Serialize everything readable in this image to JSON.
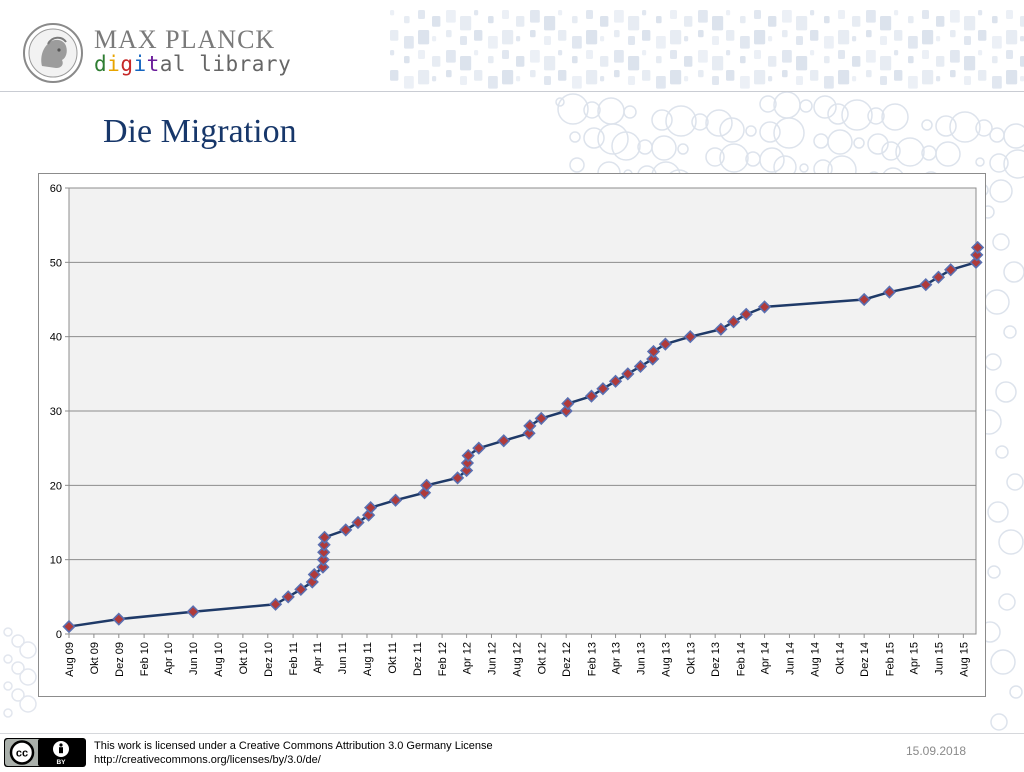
{
  "header": {
    "logo_name": "MAX PLANCK",
    "logo_sub_parts": [
      "d",
      "i",
      "g",
      "i",
      "t",
      "al library"
    ],
    "emblem_icon": "minerva-emblem-icon"
  },
  "slide": {
    "title": "Die Migration"
  },
  "footer": {
    "license_line1": "This work is licensed under a Creative Commons Attribution 3.0 Germany License",
    "license_line2": "http://creativecommons.org/licenses/by/3.0/de/",
    "date": "15.09.2018",
    "cc_icon": "creative-commons-by-icon",
    "cc_label": "cc",
    "by_label": "BY"
  },
  "colors": {
    "title": "#17376a",
    "line": "#1f3a68",
    "marker_fill": "#b03a3a",
    "marker_stroke": "#5a6fb0",
    "plot_bg": "#f2f2f2",
    "grid": "#8c8c8c"
  },
  "chart_data": {
    "type": "line",
    "title": "",
    "xlabel": "",
    "ylabel": "",
    "ylim": [
      0,
      60
    ],
    "yticks": [
      0,
      10,
      20,
      30,
      40,
      50,
      60
    ],
    "grid": true,
    "legend": "none",
    "x_start": "2009-08",
    "x_end": "2015-09",
    "x_ticks": [
      {
        "date": "2009-08",
        "label": "Aug 09"
      },
      {
        "date": "2009-10",
        "label": "Okt 09"
      },
      {
        "date": "2009-12",
        "label": "Dez 09"
      },
      {
        "date": "2010-02",
        "label": "Feb 10"
      },
      {
        "date": "2010-04",
        "label": "Apr 10"
      },
      {
        "date": "2010-06",
        "label": "Jun 10"
      },
      {
        "date": "2010-08",
        "label": "Aug 10"
      },
      {
        "date": "2010-10",
        "label": "Okt 10"
      },
      {
        "date": "2010-12",
        "label": "Dez 10"
      },
      {
        "date": "2011-02",
        "label": "Feb 11"
      },
      {
        "date": "2011-04",
        "label": "Apr 11"
      },
      {
        "date": "2011-06",
        "label": "Jun 11"
      },
      {
        "date": "2011-08",
        "label": "Aug 11"
      },
      {
        "date": "2011-10",
        "label": "Okt 11"
      },
      {
        "date": "2011-12",
        "label": "Dez 11"
      },
      {
        "date": "2012-02",
        "label": "Feb 12"
      },
      {
        "date": "2012-04",
        "label": "Apr 12"
      },
      {
        "date": "2012-06",
        "label": "Jun 12"
      },
      {
        "date": "2012-08",
        "label": "Aug 12"
      },
      {
        "date": "2012-10",
        "label": "Okt 12"
      },
      {
        "date": "2012-12",
        "label": "Dez 12"
      },
      {
        "date": "2013-02",
        "label": "Feb 13"
      },
      {
        "date": "2013-04",
        "label": "Apr 13"
      },
      {
        "date": "2013-06",
        "label": "Jun 13"
      },
      {
        "date": "2013-08",
        "label": "Aug 13"
      },
      {
        "date": "2013-10",
        "label": "Okt 13"
      },
      {
        "date": "2013-12",
        "label": "Dez 13"
      },
      {
        "date": "2014-02",
        "label": "Feb 14"
      },
      {
        "date": "2014-04",
        "label": "Apr 14"
      },
      {
        "date": "2014-06",
        "label": "Jun 14"
      },
      {
        "date": "2014-08",
        "label": "Aug 14"
      },
      {
        "date": "2014-10",
        "label": "Okt 14"
      },
      {
        "date": "2014-12",
        "label": "Dez 14"
      },
      {
        "date": "2015-02",
        "label": "Feb 15"
      },
      {
        "date": "2015-04",
        "label": "Apr 15"
      },
      {
        "date": "2015-06",
        "label": "Jun 15"
      },
      {
        "date": "2015-08",
        "label": "Aug 15"
      }
    ],
    "points": [
      {
        "x": "2009-08-01",
        "y": 1
      },
      {
        "x": "2009-12-01",
        "y": 2
      },
      {
        "x": "2010-06-01",
        "y": 3
      },
      {
        "x": "2010-12-20",
        "y": 4
      },
      {
        "x": "2011-01-20",
        "y": 5
      },
      {
        "x": "2011-02-20",
        "y": 6
      },
      {
        "x": "2011-03-20",
        "y": 7
      },
      {
        "x": "2011-03-25",
        "y": 8
      },
      {
        "x": "2011-04-15",
        "y": 9
      },
      {
        "x": "2011-04-16",
        "y": 10
      },
      {
        "x": "2011-04-17",
        "y": 11
      },
      {
        "x": "2011-04-18",
        "y": 12
      },
      {
        "x": "2011-04-19",
        "y": 13
      },
      {
        "x": "2011-06-10",
        "y": 14
      },
      {
        "x": "2011-07-10",
        "y": 15
      },
      {
        "x": "2011-08-05",
        "y": 16
      },
      {
        "x": "2011-08-10",
        "y": 17
      },
      {
        "x": "2011-10-10",
        "y": 18
      },
      {
        "x": "2011-12-20",
        "y": 19
      },
      {
        "x": "2011-12-25",
        "y": 20
      },
      {
        "x": "2012-03-10",
        "y": 21
      },
      {
        "x": "2012-04-01",
        "y": 22
      },
      {
        "x": "2012-04-03",
        "y": 23
      },
      {
        "x": "2012-04-05",
        "y": 24
      },
      {
        "x": "2012-05-01",
        "y": 25
      },
      {
        "x": "2012-07-01",
        "y": 26
      },
      {
        "x": "2012-09-01",
        "y": 27
      },
      {
        "x": "2012-09-03",
        "y": 28
      },
      {
        "x": "2012-10-01",
        "y": 29
      },
      {
        "x": "2012-12-01",
        "y": 30
      },
      {
        "x": "2012-12-05",
        "y": 31
      },
      {
        "x": "2013-02-01",
        "y": 32
      },
      {
        "x": "2013-03-01",
        "y": 33
      },
      {
        "x": "2013-04-01",
        "y": 34
      },
      {
        "x": "2013-05-01",
        "y": 35
      },
      {
        "x": "2013-06-01",
        "y": 36
      },
      {
        "x": "2013-07-01",
        "y": 37
      },
      {
        "x": "2013-07-03",
        "y": 38
      },
      {
        "x": "2013-08-01",
        "y": 39
      },
      {
        "x": "2013-10-01",
        "y": 40
      },
      {
        "x": "2013-12-15",
        "y": 41
      },
      {
        "x": "2014-01-15",
        "y": 42
      },
      {
        "x": "2014-02-15",
        "y": 43
      },
      {
        "x": "2014-04-01",
        "y": 44
      },
      {
        "x": "2014-12-01",
        "y": 45
      },
      {
        "x": "2015-02-01",
        "y": 46
      },
      {
        "x": "2015-05-01",
        "y": 47
      },
      {
        "x": "2015-06-01",
        "y": 48
      },
      {
        "x": "2015-07-01",
        "y": 49
      },
      {
        "x": "2015-09-01",
        "y": 50
      },
      {
        "x": "2015-09-03",
        "y": 51
      },
      {
        "x": "2015-09-05",
        "y": 52
      }
    ]
  }
}
